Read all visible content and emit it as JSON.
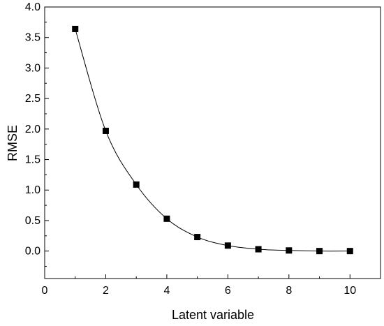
{
  "chart_data": {
    "type": "line",
    "title": "",
    "xlabel": "Latent variable",
    "ylabel": "RMSE",
    "xlim": [
      0,
      11
    ],
    "ylim": [
      -0.45,
      4.0
    ],
    "x_ticks": [
      0,
      2,
      4,
      6,
      8,
      10
    ],
    "y_ticks": [
      0.0,
      0.5,
      1.0,
      1.5,
      2.0,
      2.5,
      3.0,
      3.5,
      4.0
    ],
    "x_tick_labels": [
      "0",
      "2",
      "4",
      "6",
      "8",
      "10"
    ],
    "y_tick_labels": [
      "0.0",
      "0.5",
      "1.0",
      "1.5",
      "2.0",
      "2.5",
      "3.0",
      "3.5",
      "4.0"
    ],
    "grid": false,
    "marker": "square",
    "series": [
      {
        "x": [
          1,
          2,
          3,
          4,
          5,
          6,
          7,
          8,
          9,
          10
        ],
        "y": [
          3.64,
          1.97,
          1.09,
          0.53,
          0.23,
          0.09,
          0.03,
          0.01,
          0.0,
          0.0
        ],
        "color": "#000000"
      }
    ]
  }
}
